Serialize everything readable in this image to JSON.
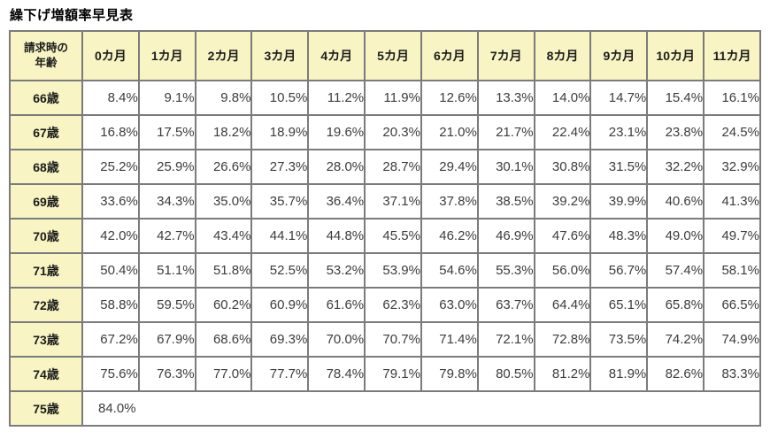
{
  "page": {
    "title": "繰下げ増額率早見表"
  },
  "table": {
    "corner_header_lines": [
      "請求時の",
      "年齢"
    ],
    "month_headers": [
      "0カ月",
      "1カ月",
      "2カ月",
      "3カ月",
      "4カ月",
      "5カ月",
      "6カ月",
      "7カ月",
      "8カ月",
      "9カ月",
      "10カ月",
      "11カ月"
    ],
    "rows": [
      {
        "age": "66歳",
        "values": [
          "8.4%",
          "9.1%",
          "9.8%",
          "10.5%",
          "11.2%",
          "11.9%",
          "12.6%",
          "13.3%",
          "14.0%",
          "14.7%",
          "15.4%",
          "16.1%"
        ]
      },
      {
        "age": "67歳",
        "values": [
          "16.8%",
          "17.5%",
          "18.2%",
          "18.9%",
          "19.6%",
          "20.3%",
          "21.0%",
          "21.7%",
          "22.4%",
          "23.1%",
          "23.8%",
          "24.5%"
        ]
      },
      {
        "age": "68歳",
        "values": [
          "25.2%",
          "25.9%",
          "26.6%",
          "27.3%",
          "28.0%",
          "28.7%",
          "29.4%",
          "30.1%",
          "30.8%",
          "31.5%",
          "32.2%",
          "32.9%"
        ]
      },
      {
        "age": "69歳",
        "values": [
          "33.6%",
          "34.3%",
          "35.0%",
          "35.7%",
          "36.4%",
          "37.1%",
          "37.8%",
          "38.5%",
          "39.2%",
          "39.9%",
          "40.6%",
          "41.3%"
        ]
      },
      {
        "age": "70歳",
        "values": [
          "42.0%",
          "42.7%",
          "43.4%",
          "44.1%",
          "44.8%",
          "45.5%",
          "46.2%",
          "46.9%",
          "47.6%",
          "48.3%",
          "49.0%",
          "49.7%"
        ]
      },
      {
        "age": "71歳",
        "values": [
          "50.4%",
          "51.1%",
          "51.8%",
          "52.5%",
          "53.2%",
          "53.9%",
          "54.6%",
          "55.3%",
          "56.0%",
          "56.7%",
          "57.4%",
          "58.1%"
        ]
      },
      {
        "age": "72歳",
        "values": [
          "58.8%",
          "59.5%",
          "60.2%",
          "60.9%",
          "61.6%",
          "62.3%",
          "63.0%",
          "63.7%",
          "64.4%",
          "65.1%",
          "65.8%",
          "66.5%"
        ]
      },
      {
        "age": "73歳",
        "values": [
          "67.2%",
          "67.9%",
          "68.6%",
          "69.3%",
          "70.0%",
          "70.7%",
          "71.4%",
          "72.1%",
          "72.8%",
          "73.5%",
          "74.2%",
          "74.9%"
        ]
      },
      {
        "age": "74歳",
        "values": [
          "75.6%",
          "76.3%",
          "77.0%",
          "77.7%",
          "78.4%",
          "79.1%",
          "79.8%",
          "80.5%",
          "81.2%",
          "81.9%",
          "82.6%",
          "83.3%"
        ]
      },
      {
        "age": "75歳",
        "values": [
          "84.0%"
        ],
        "merged": true
      }
    ]
  },
  "colors": {
    "header_bg": "#f8f4c3",
    "border": "#7b7b7b",
    "value_text": "#3c3c3c",
    "header_text": "#1c1c1c"
  }
}
